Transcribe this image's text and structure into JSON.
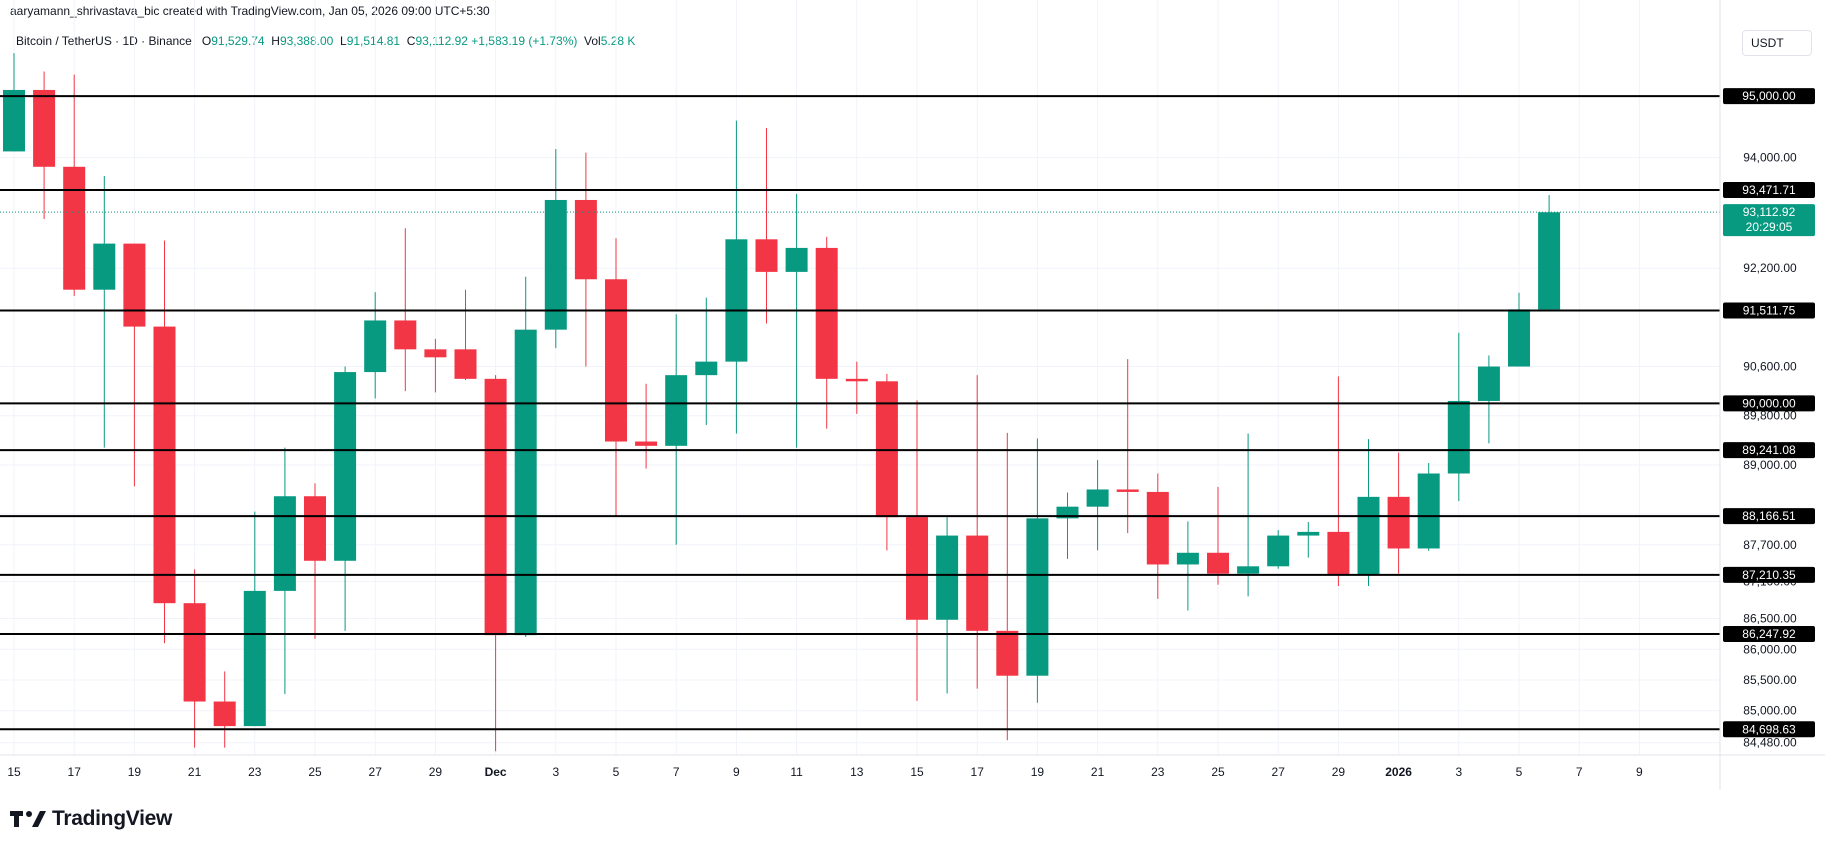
{
  "header": {
    "attribution": "aaryamann_shrivastava_bic created with TradingView.com, Jan 05, 2026 09:00 UTC+5:30"
  },
  "legend": {
    "symbol": "Bitcoin / TetherUS · 1D · Binance",
    "open_label": "O",
    "open": "91,529.74",
    "high_label": "H",
    "high": "93,388.00",
    "low_label": "L",
    "low": "91,514.81",
    "close_label": "C",
    "close": "93,112.92",
    "change": "+1,583.19 (+1.73%)",
    "vol_label": "Vol",
    "vol": "5.28 K"
  },
  "currency_button": "USDT",
  "brand": {
    "name": "TradingView"
  },
  "chart_data": {
    "type": "candlestick",
    "title": "Bitcoin / TetherUS · 1D · Binance",
    "ylim": [
      84280,
      95750
    ],
    "up_color": "#089981",
    "down_color": "#f23645",
    "y_ticks": [
      {
        "value": 94000,
        "label": "94,000.00"
      },
      {
        "value": 92200,
        "label": "92,200.00"
      },
      {
        "value": 90600,
        "label": "90,600.00"
      },
      {
        "value": 89800,
        "label": "89,800.00"
      },
      {
        "value": 89000,
        "label": "89,000.00"
      },
      {
        "value": 88200,
        "label": "88,200.00"
      },
      {
        "value": 87700,
        "label": "87,700.00"
      },
      {
        "value": 87100,
        "label": "87,100.00"
      },
      {
        "value": 86500,
        "label": "86,500.00"
      },
      {
        "value": 86000,
        "label": "86,000.00"
      },
      {
        "value": 85500,
        "label": "85,500.00"
      },
      {
        "value": 85000,
        "label": "85,000.00"
      },
      {
        "value": 84480,
        "label": "84,480.00"
      }
    ],
    "x_ticks": [
      {
        "day": 15,
        "label": "15"
      },
      {
        "day": 17,
        "label": "17"
      },
      {
        "day": 19,
        "label": "19"
      },
      {
        "day": 21,
        "label": "21"
      },
      {
        "day": 23,
        "label": "23"
      },
      {
        "day": 25,
        "label": "25"
      },
      {
        "day": 27,
        "label": "27"
      },
      {
        "day": 29,
        "label": "29"
      },
      {
        "day": 31,
        "label": "Dec",
        "bold": true
      },
      {
        "day": 33,
        "label": "3"
      },
      {
        "day": 35,
        "label": "5"
      },
      {
        "day": 37,
        "label": "7"
      },
      {
        "day": 39,
        "label": "9"
      },
      {
        "day": 41,
        "label": "11"
      },
      {
        "day": 43,
        "label": "13"
      },
      {
        "day": 45,
        "label": "15"
      },
      {
        "day": 47,
        "label": "17"
      },
      {
        "day": 49,
        "label": "19"
      },
      {
        "day": 51,
        "label": "21"
      },
      {
        "day": 53,
        "label": "23"
      },
      {
        "day": 55,
        "label": "25"
      },
      {
        "day": 57,
        "label": "27"
      },
      {
        "day": 59,
        "label": "29"
      },
      {
        "day": 61,
        "label": "2026",
        "bold": true
      },
      {
        "day": 63,
        "label": "3"
      },
      {
        "day": 65,
        "label": "5"
      },
      {
        "day": 67,
        "label": "7"
      },
      {
        "day": 69,
        "label": "9"
      }
    ],
    "horizontal_levels": [
      {
        "value": 95000,
        "label": "95,000.00"
      },
      {
        "value": 93471.71,
        "label": "93,471.71"
      },
      {
        "value": 91511.75,
        "label": "91,511.75"
      },
      {
        "value": 90000,
        "label": "90,000.00"
      },
      {
        "value": 89241.08,
        "label": "89,241.08"
      },
      {
        "value": 88166.51,
        "label": "88,166.51"
      },
      {
        "value": 87210.35,
        "label": "87,210.35"
      },
      {
        "value": 86247.92,
        "label": "86,247.92"
      },
      {
        "value": 84698.63,
        "label": "84,698.63"
      }
    ],
    "current_price": {
      "value": 93112.92,
      "label": "93,112.92",
      "countdown": "20:29:05"
    },
    "candles": [
      {
        "day": 15,
        "open": 94100,
        "high": 95700,
        "low": 94100,
        "close": 95100
      },
      {
        "day": 16,
        "open": 95100,
        "high": 95400,
        "low": 93000,
        "close": 93850
      },
      {
        "day": 17,
        "open": 93850,
        "high": 95350,
        "low": 91750,
        "close": 91850
      },
      {
        "day": 18,
        "open": 91850,
        "high": 93700,
        "low": 89280,
        "close": 92600
      },
      {
        "day": 19,
        "open": 92600,
        "high": 92600,
        "low": 88650,
        "close": 91250
      },
      {
        "day": 20,
        "open": 91250,
        "high": 92650,
        "low": 86100,
        "close": 86750
      },
      {
        "day": 21,
        "open": 86750,
        "high": 87300,
        "low": 84400,
        "close": 85150
      },
      {
        "day": 22,
        "open": 85150,
        "high": 85640,
        "low": 84400,
        "close": 84750
      },
      {
        "day": 23,
        "open": 84750,
        "high": 88240,
        "low": 84750,
        "close": 86950
      },
      {
        "day": 24,
        "open": 86950,
        "high": 89280,
        "low": 85270,
        "close": 88490
      },
      {
        "day": 25,
        "open": 88490,
        "high": 88700,
        "low": 86170,
        "close": 87440
      },
      {
        "day": 26,
        "open": 87440,
        "high": 90600,
        "low": 86300,
        "close": 90510
      },
      {
        "day": 27,
        "open": 90510,
        "high": 91810,
        "low": 90080,
        "close": 91350
      },
      {
        "day": 28,
        "open": 91350,
        "high": 92850,
        "low": 90200,
        "close": 90880
      },
      {
        "day": 29,
        "open": 90880,
        "high": 91050,
        "low": 90180,
        "close": 90750
      },
      {
        "day": 30,
        "open": 90880,
        "high": 91850,
        "low": 90380,
        "close": 90400
      },
      {
        "day": 31,
        "open": 90400,
        "high": 90460,
        "low": 84340,
        "close": 86230
      },
      {
        "day": 32,
        "open": 86230,
        "high": 92060,
        "low": 86200,
        "close": 91200
      },
      {
        "day": 33,
        "open": 91200,
        "high": 94140,
        "low": 90900,
        "close": 93310
      },
      {
        "day": 34,
        "open": 93310,
        "high": 94080,
        "low": 90600,
        "close": 92020
      },
      {
        "day": 35,
        "open": 92020,
        "high": 92690,
        "low": 88170,
        "close": 89380
      },
      {
        "day": 36,
        "open": 89380,
        "high": 90320,
        "low": 88940,
        "close": 89310
      },
      {
        "day": 37,
        "open": 89310,
        "high": 91450,
        "low": 87700,
        "close": 90460
      },
      {
        "day": 38,
        "open": 90460,
        "high": 91720,
        "low": 89650,
        "close": 90680
      },
      {
        "day": 39,
        "open": 90680,
        "high": 94600,
        "low": 89510,
        "close": 92670
      },
      {
        "day": 40,
        "open": 92670,
        "high": 94480,
        "low": 91300,
        "close": 92140
      },
      {
        "day": 41,
        "open": 92140,
        "high": 93410,
        "low": 89280,
        "close": 92530
      },
      {
        "day": 42,
        "open": 92530,
        "high": 92710,
        "low": 89590,
        "close": 90400
      },
      {
        "day": 43,
        "open": 90400,
        "high": 90680,
        "low": 89830,
        "close": 90360
      },
      {
        "day": 44,
        "open": 90360,
        "high": 90480,
        "low": 87610,
        "close": 88150
      },
      {
        "day": 45,
        "open": 88150,
        "high": 90050,
        "low": 85160,
        "close": 86480
      },
      {
        "day": 46,
        "open": 86480,
        "high": 88150,
        "low": 85280,
        "close": 87850
      },
      {
        "day": 47,
        "open": 87850,
        "high": 90460,
        "low": 85360,
        "close": 86300
      },
      {
        "day": 48,
        "open": 86300,
        "high": 89520,
        "low": 84520,
        "close": 85570
      },
      {
        "day": 49,
        "open": 85570,
        "high": 89430,
        "low": 85130,
        "close": 88130
      },
      {
        "day": 50,
        "open": 88130,
        "high": 88550,
        "low": 87470,
        "close": 88320
      },
      {
        "day": 51,
        "open": 88320,
        "high": 89080,
        "low": 87610,
        "close": 88600
      },
      {
        "day": 52,
        "open": 88600,
        "high": 90720,
        "low": 87890,
        "close": 88560
      },
      {
        "day": 53,
        "open": 88560,
        "high": 88860,
        "low": 86820,
        "close": 87380
      },
      {
        "day": 54,
        "open": 87380,
        "high": 88080,
        "low": 86630,
        "close": 87570
      },
      {
        "day": 55,
        "open": 87570,
        "high": 88640,
        "low": 87050,
        "close": 87230
      },
      {
        "day": 56,
        "open": 87230,
        "high": 89510,
        "low": 86860,
        "close": 87350
      },
      {
        "day": 57,
        "open": 87350,
        "high": 87940,
        "low": 87310,
        "close": 87850
      },
      {
        "day": 58,
        "open": 87850,
        "high": 88070,
        "low": 87490,
        "close": 87910
      },
      {
        "day": 59,
        "open": 87910,
        "high": 90440,
        "low": 87030,
        "close": 87210
      },
      {
        "day": 60,
        "open": 87210,
        "high": 89420,
        "low": 87030,
        "close": 88480
      },
      {
        "day": 61,
        "open": 88480,
        "high": 89200,
        "low": 87230,
        "close": 87640
      },
      {
        "day": 62,
        "open": 87640,
        "high": 89030,
        "low": 87600,
        "close": 88860
      },
      {
        "day": 63,
        "open": 88860,
        "high": 91150,
        "low": 88410,
        "close": 90040
      },
      {
        "day": 64,
        "open": 90040,
        "high": 90780,
        "low": 89350,
        "close": 90600
      },
      {
        "day": 65,
        "open": 90600,
        "high": 91800,
        "low": 90600,
        "close": 91530
      },
      {
        "day": 66,
        "open": 91530,
        "high": 93390,
        "low": 91510,
        "close": 93110
      }
    ]
  }
}
